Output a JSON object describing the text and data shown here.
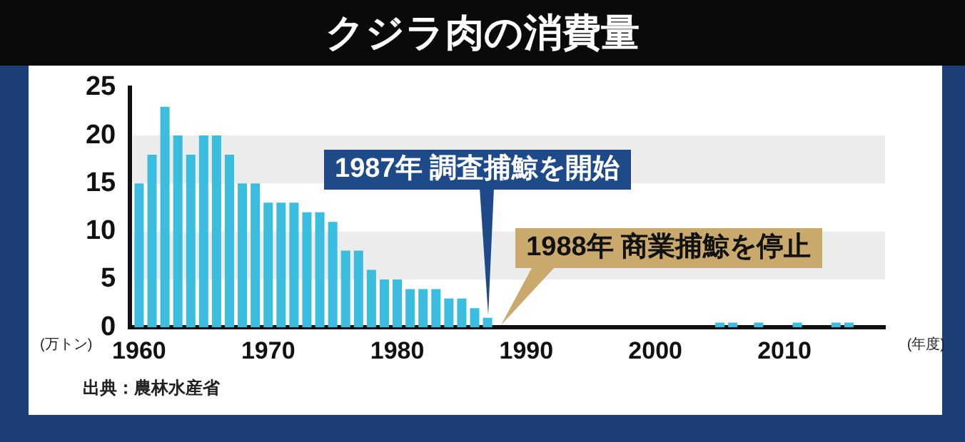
{
  "chart_data": {
    "type": "bar",
    "title": "クジラ肉の消費量",
    "xlabel": "(年度)",
    "ylabel": "(万トン)",
    "x": [
      1960,
      1961,
      1962,
      1963,
      1964,
      1965,
      1966,
      1967,
      1968,
      1969,
      1970,
      1971,
      1972,
      1973,
      1974,
      1975,
      1976,
      1977,
      1978,
      1979,
      1980,
      1981,
      1982,
      1983,
      1984,
      1985,
      1986,
      1987,
      1988,
      1989,
      1990,
      1991,
      1992,
      1993,
      1994,
      1995,
      1996,
      1997,
      1998,
      1999,
      2000,
      2001,
      2002,
      2003,
      2004,
      2005,
      2006,
      2007,
      2008,
      2009,
      2010,
      2011,
      2012,
      2013,
      2014,
      2015
    ],
    "values": [
      15,
      18,
      23,
      20,
      18,
      20,
      20,
      18,
      15,
      15,
      13,
      13,
      13,
      12,
      12,
      11,
      8,
      8,
      6,
      5,
      5,
      4,
      4,
      4,
      3,
      3,
      2,
      1,
      0,
      0,
      0,
      0,
      0,
      0,
      0,
      0,
      0,
      0,
      0,
      0,
      0,
      0,
      0,
      0,
      0,
      0.5,
      0.5,
      0,
      0.5,
      0,
      0,
      0.5,
      0,
      0,
      0.5,
      0.5
    ],
    "color": "#3bbde0",
    "xlim": [
      1959.3,
      2017.8
    ],
    "xticks": [
      1960,
      1970,
      1980,
      1990,
      2000,
      2010
    ],
    "ylim": [
      0,
      25
    ],
    "yticks": [
      0,
      5,
      10,
      15,
      20,
      25
    ],
    "bands": [
      {
        "axis": "y",
        "from": 5,
        "to": 10,
        "color": "#ececec"
      },
      {
        "axis": "y",
        "from": 15,
        "to": 20,
        "color": "#ececec"
      }
    ],
    "annotations": [
      {
        "text": "1987年 調査捕鯨を開始",
        "x": 1987,
        "y": 1
      },
      {
        "text": "1988年 商業捕鯨を停止",
        "x": 1988,
        "y": 0
      },
      "出典：農林水産省"
    ]
  }
}
